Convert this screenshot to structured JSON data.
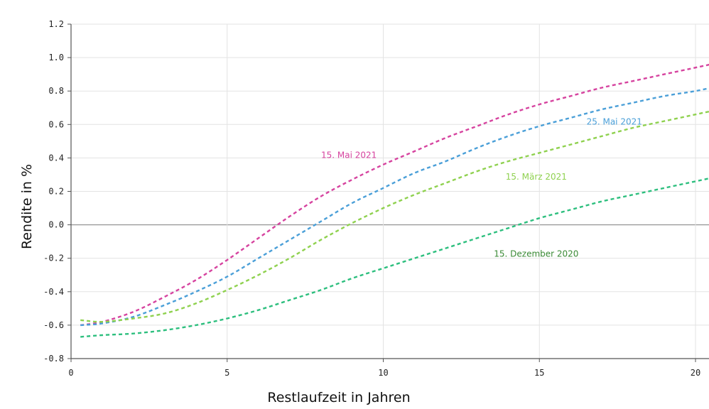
{
  "chart_data": {
    "type": "line",
    "title": "",
    "xlabel": "Restlaufzeit in Jahren",
    "ylabel": "Rendite in %",
    "xlim": [
      0,
      20.5
    ],
    "ylim": [
      -0.8,
      1.2
    ],
    "x_ticks": [
      "0",
      "5",
      "10",
      "15",
      "20"
    ],
    "y_ticks": [
      "1.2",
      "1.0",
      "0.8",
      "0.6",
      "0.4",
      "0.2",
      "0.0",
      "-0.2",
      "-0.4",
      "-0.6",
      "-0.8"
    ],
    "grid": true,
    "series": [
      {
        "name": "15. Mai 2021",
        "color": "#d6439f",
        "x": [
          0.3,
          1,
          2,
          3,
          4,
          5,
          6,
          7,
          8,
          9,
          10,
          11,
          12,
          13,
          14,
          15,
          16,
          17,
          18,
          19,
          20,
          20.5
        ],
        "y": [
          -0.6,
          -0.58,
          -0.52,
          -0.43,
          -0.33,
          -0.21,
          -0.08,
          0.05,
          0.17,
          0.27,
          0.36,
          0.44,
          0.52,
          0.59,
          0.66,
          0.72,
          0.77,
          0.82,
          0.86,
          0.9,
          0.94,
          0.96
        ]
      },
      {
        "name": "25. Mai 2021",
        "color": "#4a9fd8",
        "x": [
          0.3,
          1,
          2,
          3,
          4,
          5,
          6,
          7,
          8,
          9,
          10,
          11,
          12,
          13,
          14,
          15,
          16,
          17,
          18,
          19,
          20,
          20.5
        ],
        "y": [
          -0.6,
          -0.59,
          -0.55,
          -0.48,
          -0.4,
          -0.31,
          -0.2,
          -0.09,
          0.02,
          0.13,
          0.22,
          0.31,
          0.38,
          0.46,
          0.53,
          0.59,
          0.64,
          0.69,
          0.73,
          0.77,
          0.8,
          0.82
        ]
      },
      {
        "name": "15. März 2021",
        "color": "#8fd14f",
        "x": [
          0.3,
          1,
          2,
          3,
          4,
          5,
          6,
          7,
          8,
          9,
          10,
          11,
          12,
          13,
          14,
          15,
          16,
          17,
          18,
          19,
          20,
          20.5
        ],
        "y": [
          -0.57,
          -0.58,
          -0.56,
          -0.53,
          -0.47,
          -0.39,
          -0.3,
          -0.2,
          -0.09,
          0.01,
          0.1,
          0.18,
          0.25,
          0.32,
          0.38,
          0.43,
          0.48,
          0.53,
          0.58,
          0.62,
          0.66,
          0.68
        ]
      },
      {
        "name": "15. Dezember 2020",
        "color": "#2dbf7e",
        "x": [
          0.3,
          1,
          2,
          3,
          4,
          5,
          6,
          7,
          8,
          9,
          10,
          11,
          12,
          13,
          14,
          15,
          16,
          17,
          18,
          19,
          20,
          20.5
        ],
        "y": [
          -0.67,
          -0.66,
          -0.65,
          -0.63,
          -0.6,
          -0.56,
          -0.51,
          -0.45,
          -0.39,
          -0.32,
          -0.26,
          -0.2,
          -0.14,
          -0.08,
          -0.02,
          0.04,
          0.09,
          0.14,
          0.18,
          0.22,
          0.26,
          0.28
        ]
      }
    ],
    "annotations": [
      {
        "text": "15. Mai 2021",
        "x": 8.9,
        "y": 0.4,
        "color": "#d6439f"
      },
      {
        "text": "25. Mai 2021",
        "x": 17.4,
        "y": 0.6,
        "color": "#4a9fd8"
      },
      {
        "text": "15. März 2021",
        "x": 14.9,
        "y": 0.27,
        "color": "#8fd14f"
      },
      {
        "text": "15. Dezember 2020",
        "x": 14.9,
        "y": -0.19,
        "color": "#3a8a35"
      }
    ]
  }
}
